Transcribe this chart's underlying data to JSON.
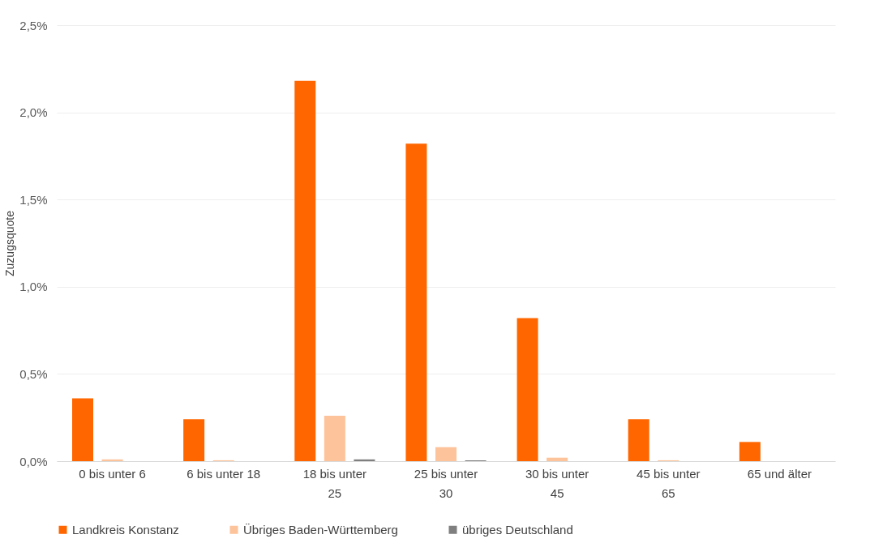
{
  "chart_data": {
    "type": "bar",
    "ylabel": "Zuzugsquote",
    "categories": [
      "0 bis unter 6",
      "6 bis unter 18",
      "18 bis unter 25",
      "25 bis unter 30",
      "30 bis unter 45",
      "45 bis unter 65",
      "65 und älter"
    ],
    "series": [
      {
        "name": "Landkreis Konstanz",
        "color": "#ff6600",
        "values": [
          0.36,
          0.24,
          2.18,
          1.82,
          0.82,
          0.24,
          0.11
        ]
      },
      {
        "name": "Übriges Baden-Württemberg",
        "color": "#fdc39a",
        "values": [
          0.01,
          0.005,
          0.26,
          0.08,
          0.02,
          0.005,
          0
        ]
      },
      {
        "name": "übriges Deutschland",
        "color": "#7f7f7f",
        "values": [
          0,
          0,
          0.01,
          0.005,
          0,
          0,
          0
        ]
      }
    ],
    "ylim": [
      0,
      2.5
    ],
    "yticks": [
      {
        "value": 0,
        "label": "0,0%"
      },
      {
        "value": 0.5,
        "label": "0,5%"
      },
      {
        "value": 1,
        "label": "1,0%"
      },
      {
        "value": 1.5,
        "label": "1,5%"
      },
      {
        "value": 2,
        "label": "2,0%"
      },
      {
        "value": 2.5,
        "label": "2,5%"
      }
    ],
    "grid": "y",
    "legend": "bottom"
  }
}
